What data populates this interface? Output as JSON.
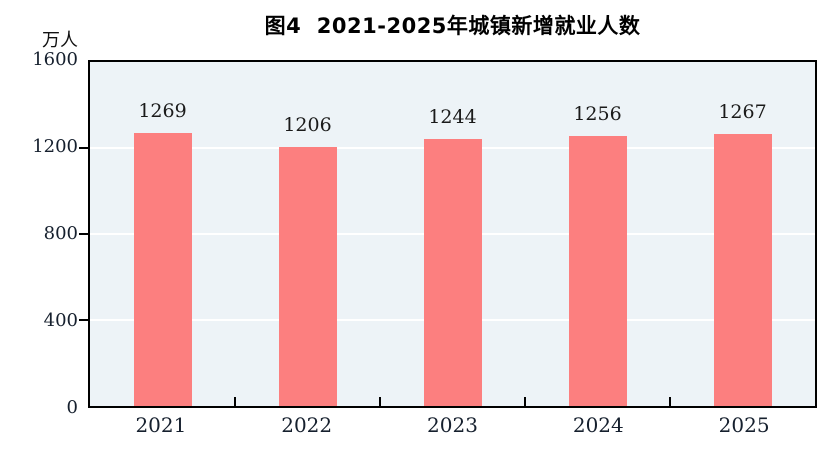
{
  "chart_data": {
    "type": "bar",
    "title": "图4  2021-2025年城镇新增就业人数",
    "unit": "万人",
    "xlabel": "",
    "ylabel": "万人",
    "categories": [
      "2021",
      "2022",
      "2023",
      "2024",
      "2025"
    ],
    "values": [
      1269,
      1206,
      1244,
      1256,
      1267
    ],
    "bar_labels": [
      "1269",
      "1206",
      "1244",
      "1256",
      "1267"
    ],
    "ylim": [
      0,
      1600
    ],
    "yticks": [
      0,
      400,
      800,
      1200,
      1600
    ],
    "gridline_values": [
      400,
      800,
      1200
    ],
    "grid": "horizontal",
    "legend": "none",
    "colors": {
      "bar": "#fc7f7f",
      "plot_background": "#edf3f7",
      "gridline": "#ffffff",
      "axis": "#000000",
      "text": "#1a1a1a"
    }
  }
}
